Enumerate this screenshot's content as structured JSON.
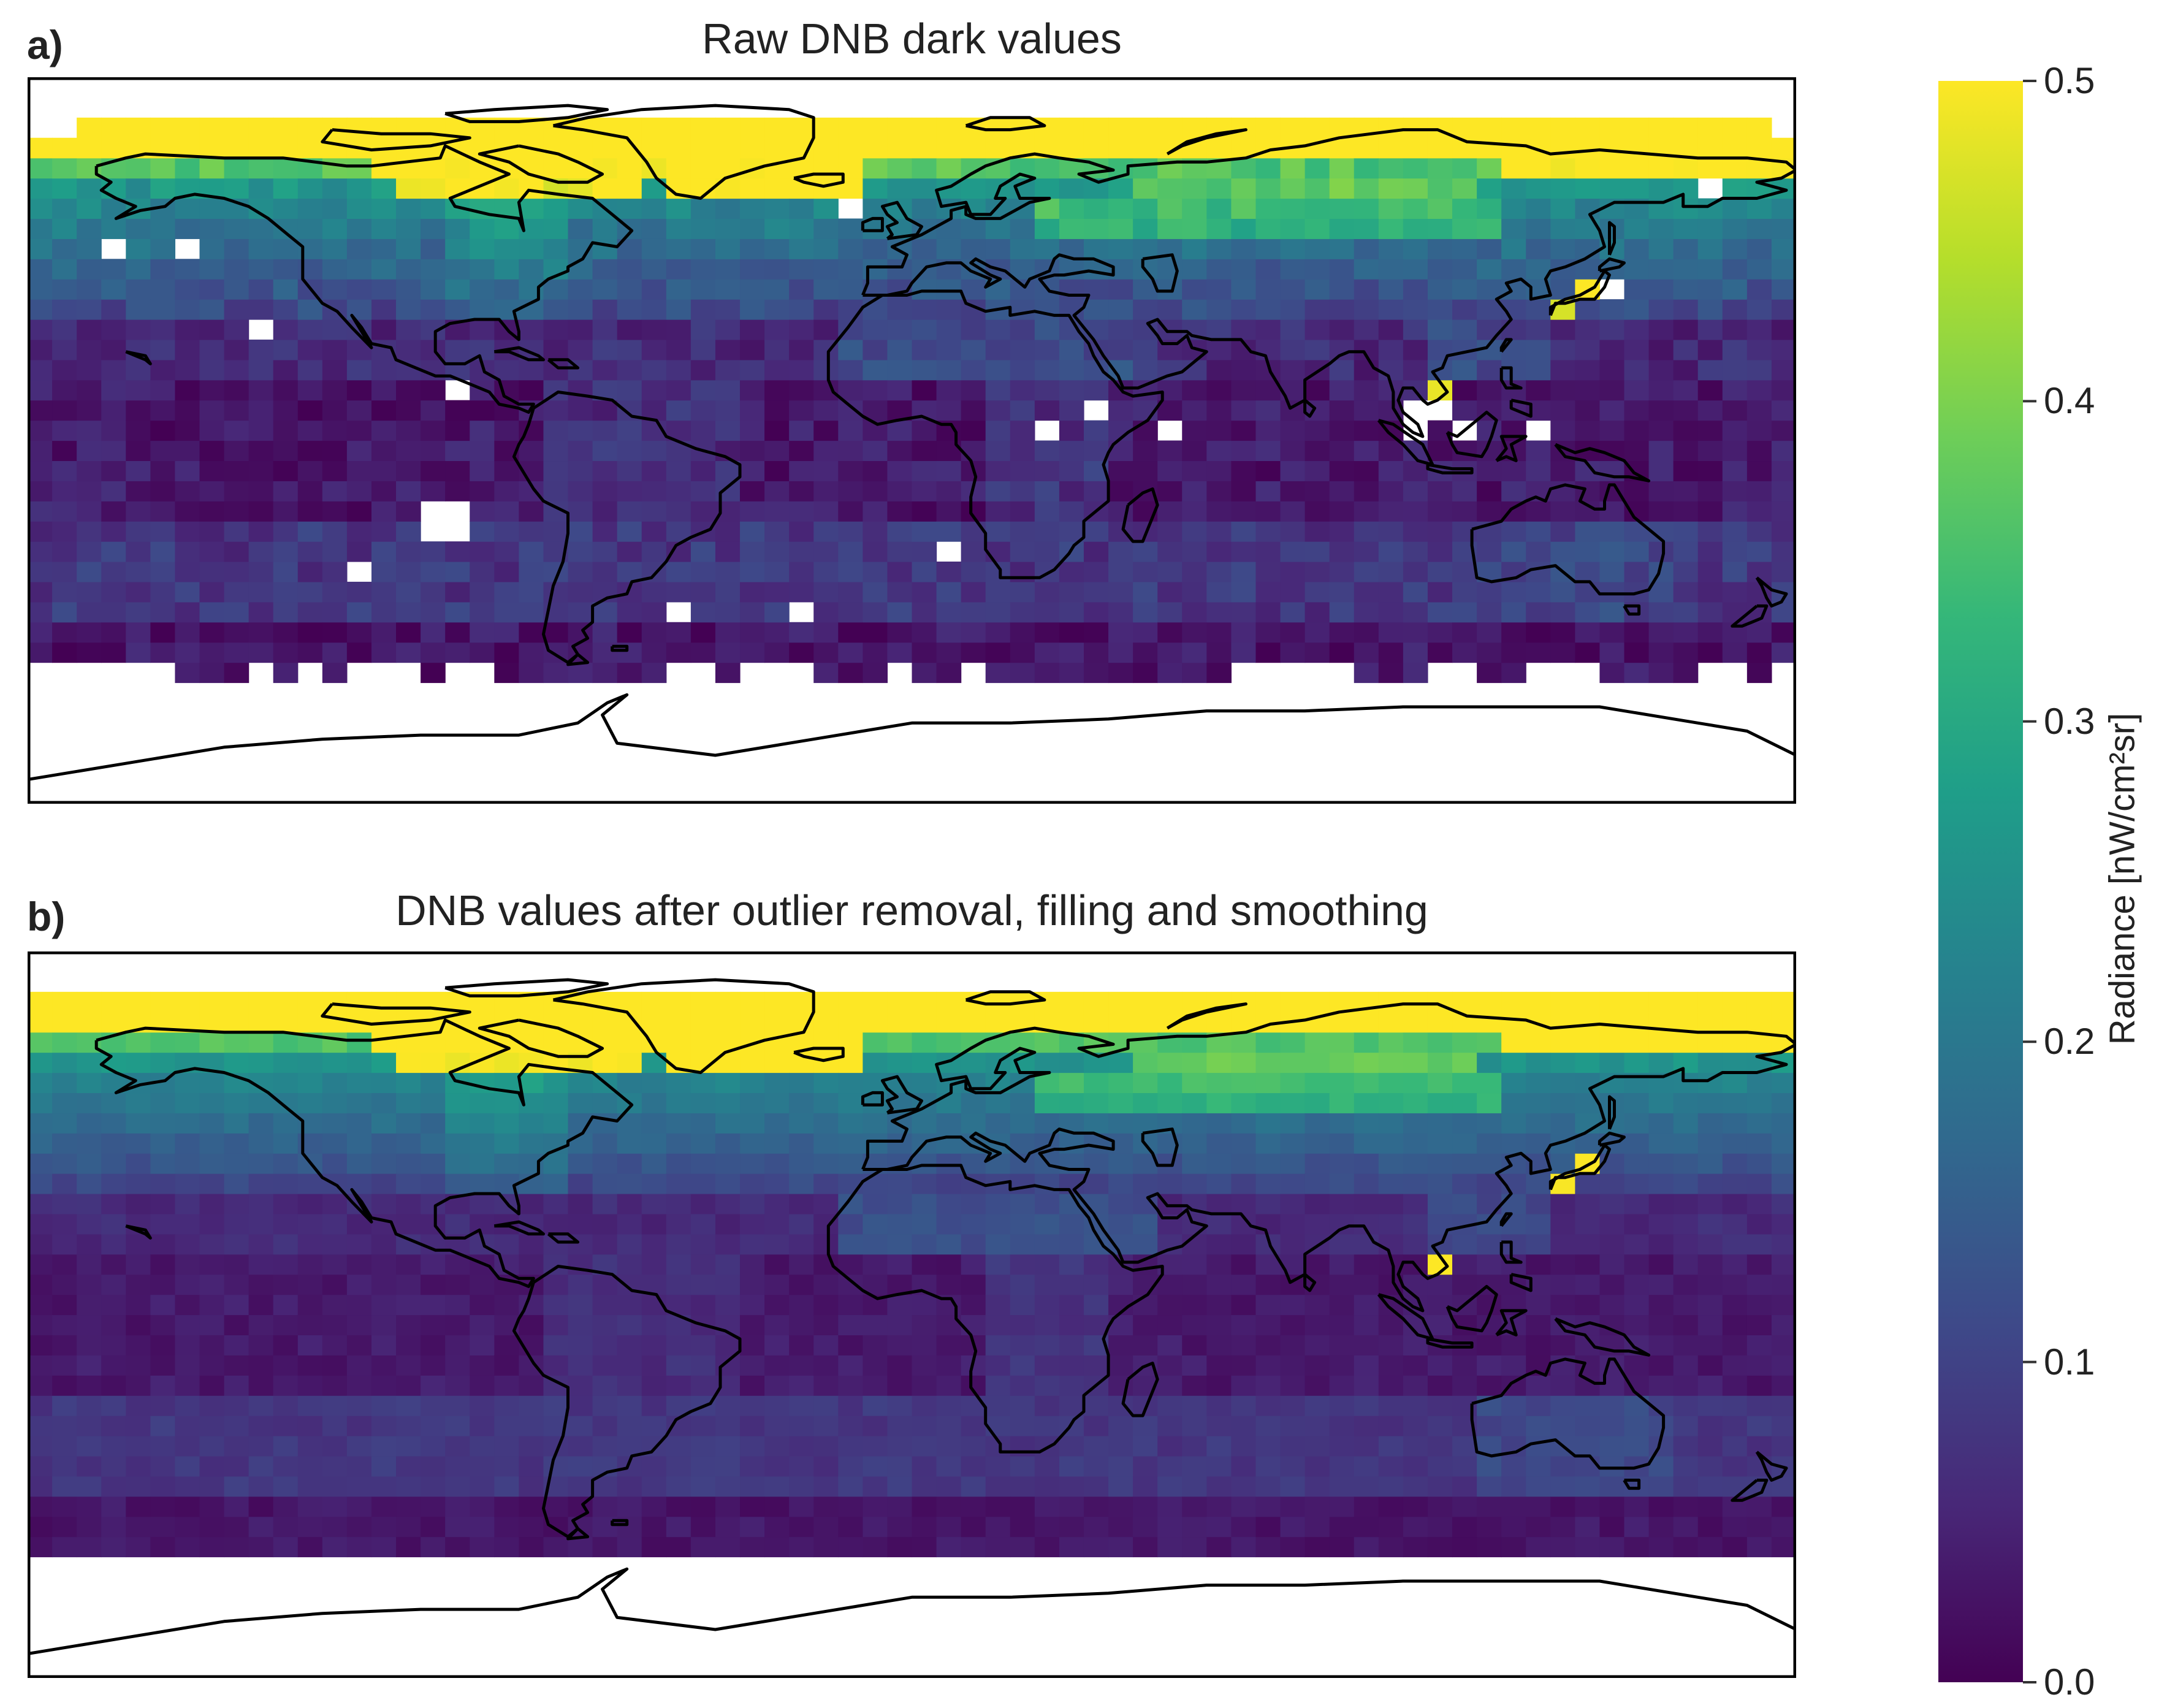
{
  "panels": [
    {
      "letter": "a)",
      "title": "Raw DNB dark values",
      "variant": "raw"
    },
    {
      "letter": "b)",
      "title": "DNB values after outlier removal, filling and smoothing",
      "variant": "smoothed"
    }
  ],
  "colorbar": {
    "label": "Radiance [nW/cm²sr]",
    "ticks": [
      "0.0",
      "0.1",
      "0.2",
      "0.3",
      "0.4",
      "0.5"
    ],
    "vmin": 0.0,
    "vmax": 0.5,
    "colormap": "viridis",
    "colors": [
      "#440154",
      "#482878",
      "#3e4989",
      "#31688e",
      "#26828e",
      "#1f9e89",
      "#35b779",
      "#6ece58",
      "#b5de2b",
      "#fde725"
    ]
  },
  "grid": {
    "lon_range": [
      -180,
      180
    ],
    "lat_range": [
      -90,
      90
    ],
    "data_lat_range": [
      -60,
      80
    ],
    "cell_deg": 5
  },
  "missing_color": "#ffffff",
  "coastline_color": "#000000"
}
